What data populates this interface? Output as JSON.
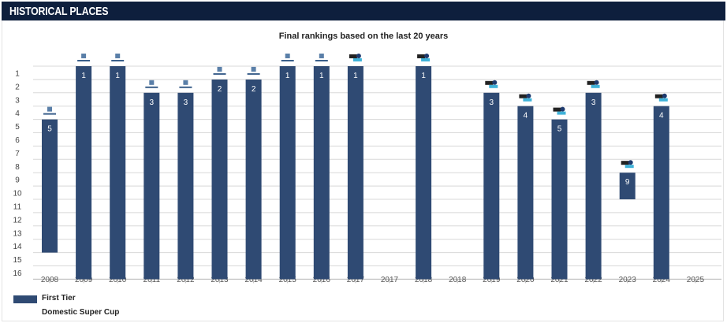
{
  "header": {
    "title": "HISTORICAL PLACES"
  },
  "chart_data": {
    "type": "bar",
    "title": "Final rankings based on the last 20 years",
    "categories": [
      "2008",
      "2009",
      "2010",
      "2011",
      "2012",
      "2013",
      "2014",
      "2015",
      "2016",
      "2017",
      "2017",
      "2018",
      "2018",
      "2019",
      "2020",
      "2021",
      "2022",
      "2023",
      "2024",
      "2025"
    ],
    "values": [
      5,
      1,
      1,
      3,
      3,
      2,
      2,
      1,
      1,
      1,
      null,
      1,
      null,
      3,
      4,
      5,
      3,
      9,
      4,
      null
    ],
    "bar_start": [
      14,
      16,
      16,
      16,
      16,
      16,
      16,
      16,
      16,
      16,
      null,
      16,
      null,
      16,
      16,
      16,
      16,
      10,
      16,
      null
    ],
    "league_icon": [
      "league-a-logo",
      "league-a-logo",
      "league-a-logo",
      "league-a-logo",
      "league-a-logo",
      "league-a-logo",
      "league-a-logo",
      "league-a-logo",
      "league-a-logo",
      "league-b-logo",
      null,
      "league-b-logo",
      null,
      "league-b-logo",
      "league-b-logo",
      "league-b-logo",
      "league-b-logo",
      "league-b-logo",
      "league-b-logo",
      null
    ],
    "y_ticks": [
      1,
      2,
      3,
      4,
      5,
      6,
      7,
      8,
      9,
      10,
      11,
      12,
      13,
      14,
      15,
      16
    ],
    "ylim": [
      16,
      1
    ],
    "y_reversed": true,
    "grid": true,
    "series": [
      {
        "name": "First Tier",
        "color": "#2f4a73"
      }
    ],
    "legend": [
      "First Tier",
      "Domestic Super Cup"
    ],
    "legend_position": "bottom-left"
  }
}
